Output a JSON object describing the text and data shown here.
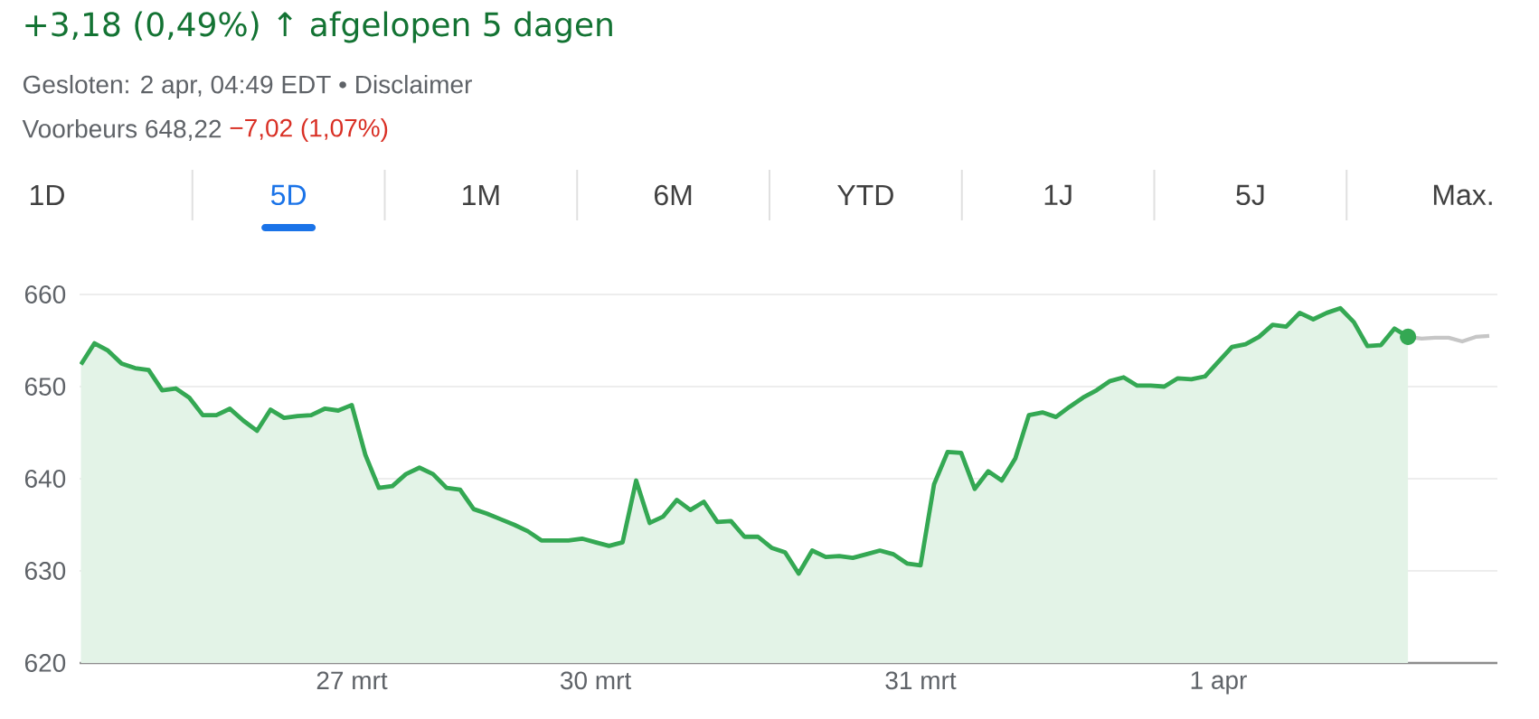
{
  "chart_data": {
    "type": "line",
    "title": "+3,18 (0,49%) ↑ afgelopen 5 dagen",
    "annotations": [
      "Gesloten: 2 apr, 04:49 EDT • Disclaimer",
      "Voorbeurs 648,22",
      "−7,02 (1,07%)",
      "1D",
      "5D",
      "1M",
      "6M",
      "YTD",
      "1J",
      "5J",
      "Max."
    ],
    "categories": [
      null,
      null,
      null,
      null,
      null,
      null,
      null,
      null,
      null,
      null,
      null,
      null,
      null,
      null,
      null,
      null,
      null,
      null,
      null,
      null,
      "27 mrt",
      null,
      null,
      null,
      null,
      null,
      null,
      null,
      null,
      null,
      null,
      null,
      null,
      null,
      null,
      null,
      null,
      null,
      "30 mrt",
      null,
      null,
      null,
      null,
      null,
      null,
      null,
      null,
      null,
      null,
      null,
      null,
      null,
      null,
      null,
      null,
      null,
      null,
      null,
      null,
      null,
      null,
      null,
      "31 mrt",
      null,
      null,
      null,
      null,
      null,
      null,
      null,
      null,
      null,
      null,
      null,
      null,
      null,
      null,
      null,
      null,
      null,
      null,
      null,
      null,
      null,
      "1 apr",
      null,
      null,
      null,
      null,
      null,
      null,
      null,
      null,
      null,
      null,
      null,
      null,
      null,
      null,
      null,
      null,
      null,
      null,
      null,
      null
    ],
    "ylim": [
      620,
      660
    ],
    "yticks": [
      620,
      630,
      640,
      650,
      660
    ],
    "grid": "y",
    "series": [
      {
        "type": "area",
        "color": "#34a853",
        "values": [
          652.4,
          654.7,
          653.9,
          652.5,
          652.0,
          651.8,
          649.6,
          649.8,
          648.8,
          646.9,
          646.9,
          647.6,
          646.3,
          645.2,
          647.5,
          646.6,
          646.8,
          646.9,
          647.6,
          647.4,
          648.0,
          642.6,
          639.0,
          639.2,
          640.5,
          641.2,
          640.5,
          639.0,
          638.8,
          636.7,
          636.2,
          635.6,
          635.0,
          634.3,
          633.3,
          633.3,
          633.3,
          633.5,
          633.1,
          632.7,
          633.1,
          639.8,
          635.2,
          635.9,
          637.7,
          636.6,
          637.5,
          635.3,
          635.4,
          633.7,
          633.7,
          632.5,
          632.0,
          629.7,
          632.2,
          631.5,
          631.6,
          631.4,
          631.8,
          632.2,
          631.8,
          630.8,
          630.6,
          639.4,
          642.9,
          642.8,
          638.9,
          640.8,
          639.8,
          642.2,
          646.9,
          647.2,
          646.7,
          647.8,
          648.8,
          649.6,
          650.6,
          651.0,
          650.1,
          650.1,
          650.0,
          650.9,
          650.8,
          651.1,
          652.7,
          654.3,
          654.6,
          655.4,
          656.7,
          656.5,
          658.0,
          657.3,
          658.0,
          658.5,
          657.0,
          654.4,
          654.5,
          656.3,
          655.4,
          null,
          null,
          null,
          null,
          null,
          null
        ]
      },
      {
        "type": "line",
        "color": "#c6c6c6",
        "values": [
          null,
          null,
          null,
          null,
          null,
          null,
          null,
          null,
          null,
          null,
          null,
          null,
          null,
          null,
          null,
          null,
          null,
          null,
          null,
          null,
          null,
          null,
          null,
          null,
          null,
          null,
          null,
          null,
          null,
          null,
          null,
          null,
          null,
          null,
          null,
          null,
          null,
          null,
          null,
          null,
          null,
          null,
          null,
          null,
          null,
          null,
          null,
          null,
          null,
          null,
          null,
          null,
          null,
          null,
          null,
          null,
          null,
          null,
          null,
          null,
          null,
          null,
          null,
          null,
          null,
          null,
          null,
          null,
          null,
          null,
          null,
          null,
          null,
          null,
          null,
          null,
          null,
          null,
          null,
          null,
          null,
          null,
          null,
          null,
          null,
          null,
          null,
          null,
          null,
          null,
          null,
          null,
          null,
          null,
          null,
          null,
          null,
          null,
          655.4,
          655.2,
          655.3,
          655.3,
          654.9,
          655.4,
          655.5
        ]
      },
      {
        "type": "scatter",
        "color": "#34a853",
        "values": [
          null,
          null,
          null,
          null,
          null,
          null,
          null,
          null,
          null,
          null,
          null,
          null,
          null,
          null,
          null,
          null,
          null,
          null,
          null,
          null,
          null,
          null,
          null,
          null,
          null,
          null,
          null,
          null,
          null,
          null,
          null,
          null,
          null,
          null,
          null,
          null,
          null,
          null,
          null,
          null,
          null,
          null,
          null,
          null,
          null,
          null,
          null,
          null,
          null,
          null,
          null,
          null,
          null,
          null,
          null,
          null,
          null,
          null,
          null,
          null,
          null,
          null,
          null,
          null,
          null,
          null,
          null,
          null,
          null,
          null,
          null,
          null,
          null,
          null,
          null,
          null,
          null,
          null,
          null,
          null,
          null,
          null,
          null,
          null,
          null,
          null,
          null,
          null,
          null,
          null,
          null,
          null,
          null,
          null,
          null,
          null,
          null,
          null,
          655.4,
          null,
          null,
          null,
          null,
          null,
          null
        ]
      }
    ]
  }
}
